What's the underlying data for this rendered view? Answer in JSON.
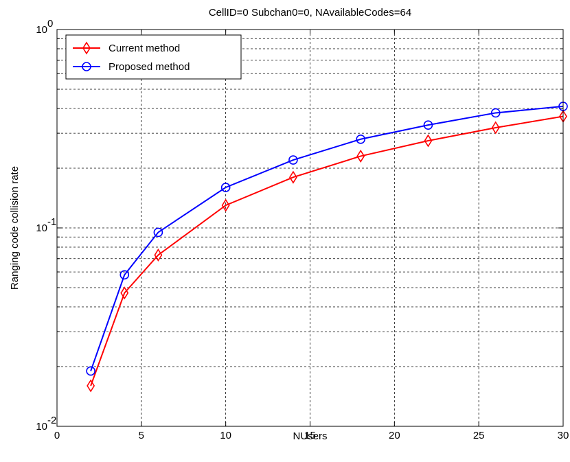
{
  "chart_data": {
    "type": "line",
    "title": "CellID=0  Subchan0=0, NAvailableCodes=64",
    "xlabel": "NUsers",
    "ylabel": "Ranging code collision rate",
    "xlim": [
      0,
      30
    ],
    "ylim": [
      0.01,
      1
    ],
    "yscale": "log",
    "grid": true,
    "legend_position": "top-left",
    "x_ticks": [
      0,
      5,
      10,
      15,
      20,
      25,
      30
    ],
    "x_tick_labels": [
      "0",
      "5",
      "10",
      "15",
      "20",
      "25",
      "30"
    ],
    "y_ticks": [
      0.01,
      0.1,
      1
    ],
    "y_tick_labels": [
      {
        "base": "10",
        "exp": "-2"
      },
      {
        "base": "10",
        "exp": "-1"
      },
      {
        "base": "10",
        "exp": "0"
      }
    ],
    "x": [
      2,
      4,
      6,
      10,
      14,
      18,
      22,
      26,
      30
    ],
    "series": [
      {
        "name": "Current method",
        "color": "#ff0000",
        "marker": "diamond",
        "values": [
          0.016,
          0.047,
          0.073,
          0.13,
          0.18,
          0.23,
          0.275,
          0.32,
          0.365
        ]
      },
      {
        "name": "Proposed method",
        "color": "#0000ff",
        "marker": "circle",
        "values": [
          0.019,
          0.058,
          0.095,
          0.16,
          0.22,
          0.28,
          0.33,
          0.38,
          0.41
        ]
      }
    ]
  }
}
